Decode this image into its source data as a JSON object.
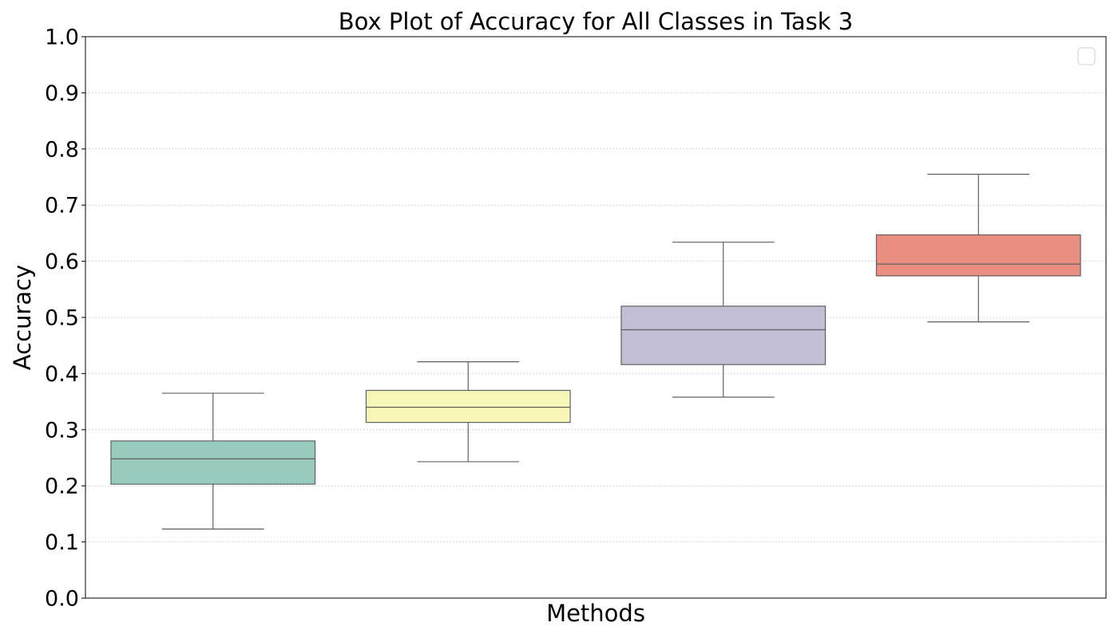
{
  "chart_data": {
    "type": "box",
    "title": "Box Plot of Accuracy for All Classes in Task 3",
    "xlabel": "Methods",
    "ylabel": "Accuracy",
    "ylim": [
      0.0,
      1.0
    ],
    "yticks": [
      "0.0",
      "0.1",
      "0.2",
      "0.3",
      "0.4",
      "0.5",
      "0.6",
      "0.7",
      "0.8",
      "0.9",
      "1.0"
    ],
    "grid": "horizontal dotted",
    "legend": "top-right (empty)",
    "boxes": [
      {
        "color": "#96cbbe",
        "whisker_low": 0.123,
        "q1": 0.203,
        "median": 0.248,
        "q3": 0.28,
        "whisker_high": 0.365
      },
      {
        "color": "#f7f6b9",
        "whisker_low": 0.243,
        "q1": 0.313,
        "median": 0.34,
        "q3": 0.37,
        "whisker_high": 0.421
      },
      {
        "color": "#c2bed6",
        "whisker_low": 0.358,
        "q1": 0.416,
        "median": 0.478,
        "q3": 0.52,
        "whisker_high": 0.634
      },
      {
        "color": "#ea8e80",
        "whisker_low": 0.492,
        "q1": 0.574,
        "median": 0.595,
        "q3": 0.647,
        "whisker_high": 0.755
      }
    ]
  }
}
